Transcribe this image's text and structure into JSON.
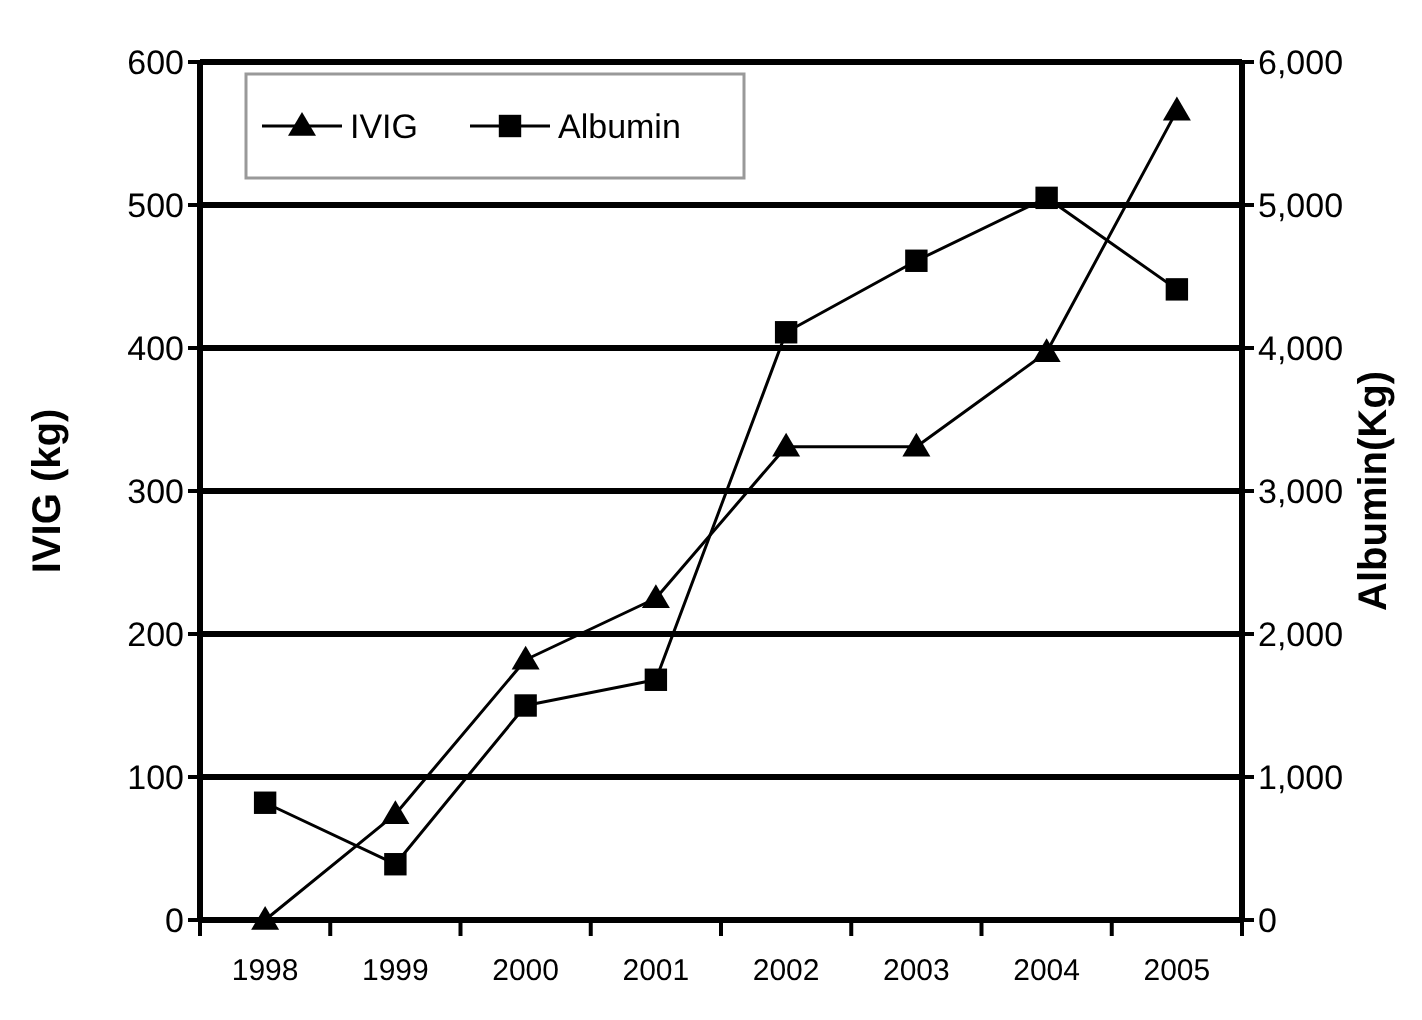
{
  "chart_data": {
    "type": "line",
    "categories": [
      "1998",
      "1999",
      "2000",
      "2001",
      "2002",
      "2003",
      "2004",
      "2005"
    ],
    "series": [
      {
        "name": "IVIG",
        "color": "#000000",
        "marker": "triangle",
        "values": [
          0,
          74,
          182,
          225,
          331,
          331,
          397,
          566
        ]
      },
      {
        "name": "Albumin",
        "color": "#000000",
        "marker": "square",
        "axis": "y2",
        "values": [
          820,
          390,
          1500,
          1680,
          4110,
          4610,
          5050,
          4410
        ]
      }
    ],
    "ylabel": "IVIG (kg)",
    "y2label": "Albumin(Kg)",
    "ylim": [
      0,
      600
    ],
    "yticks": [
      0,
      100,
      200,
      300,
      400,
      500,
      600
    ],
    "y2lim": [
      0,
      6000
    ],
    "y2ticks": [
      0,
      {
        "value": 1000,
        "label": "1,000"
      },
      {
        "value": 2000,
        "label": "2,000"
      },
      {
        "value": 3000,
        "label": "3,000"
      },
      {
        "value": 4000,
        "label": "4,000"
      },
      {
        "value": 5000,
        "label": "5,000"
      },
      {
        "value": 6000,
        "label": "6,000"
      }
    ],
    "grid": "y",
    "legend": "top left",
    "line_style": "solid"
  }
}
